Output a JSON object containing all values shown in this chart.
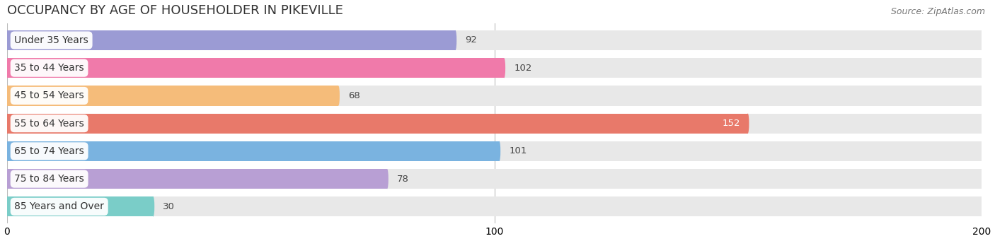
{
  "title": "OCCUPANCY BY AGE OF HOUSEHOLDER IN PIKEVILLE",
  "source": "Source: ZipAtlas.com",
  "categories": [
    "Under 35 Years",
    "35 to 44 Years",
    "45 to 54 Years",
    "55 to 64 Years",
    "65 to 74 Years",
    "75 to 84 Years",
    "85 Years and Over"
  ],
  "values": [
    92,
    102,
    68,
    152,
    101,
    78,
    30
  ],
  "bar_colors": [
    "#9b9bd4",
    "#f07aaa",
    "#f5bc7a",
    "#e8796a",
    "#7ab3e0",
    "#b89fd4",
    "#7acdc8"
  ],
  "bar_bg_color": "#e8e8e8",
  "xlim": [
    0,
    200
  ],
  "xticks": [
    0,
    100,
    200
  ],
  "title_fontsize": 13,
  "label_fontsize": 10,
  "value_fontsize": 9.5,
  "source_fontsize": 9,
  "bar_height": 0.72,
  "figsize": [
    14.06,
    3.41
  ],
  "dpi": 100
}
